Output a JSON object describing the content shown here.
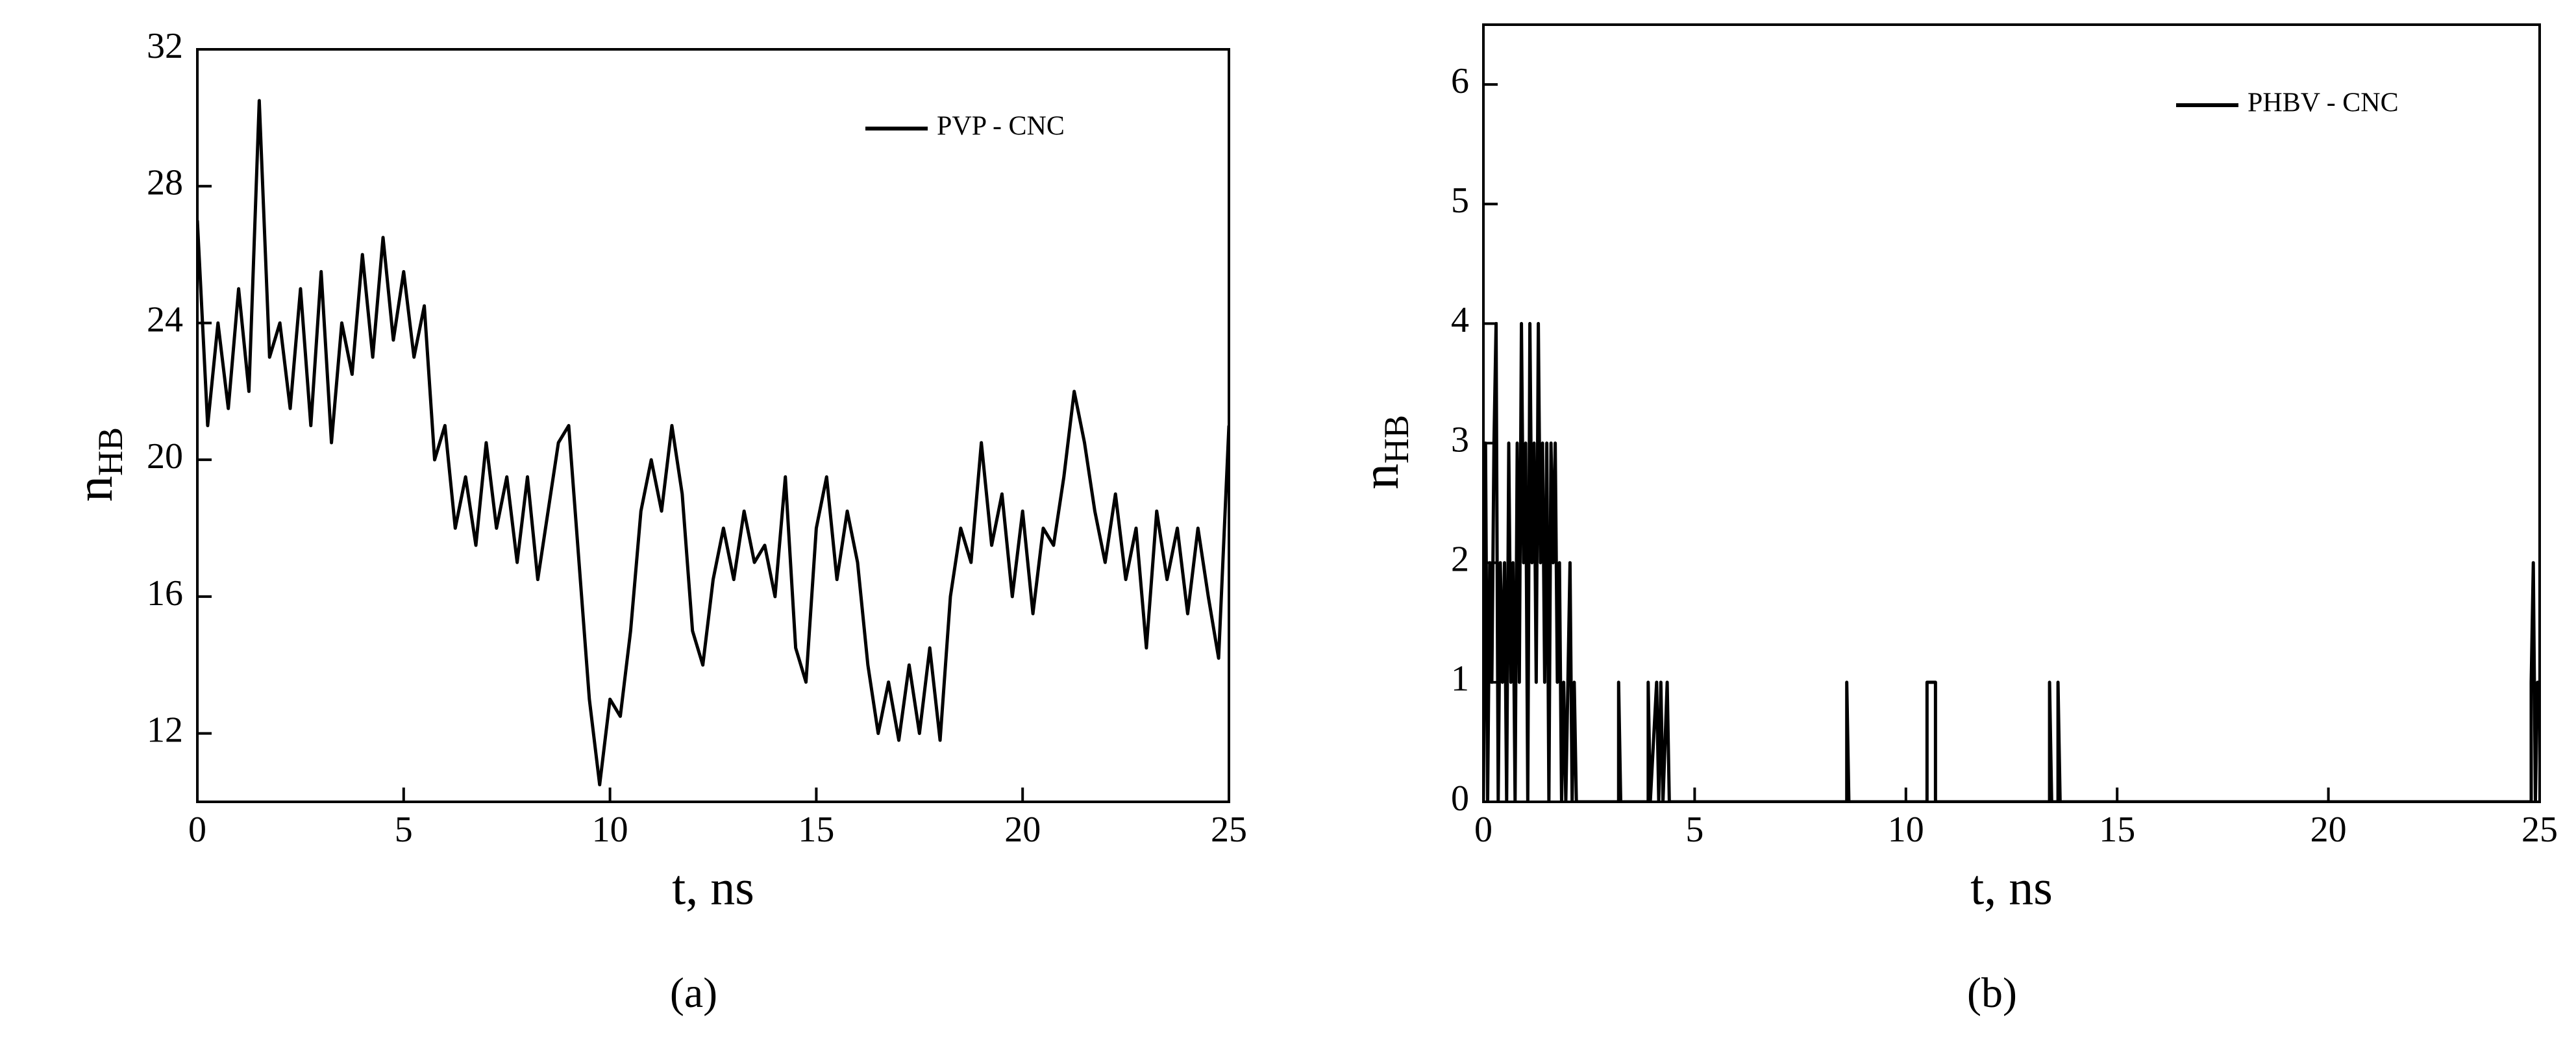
{
  "chart_data": [
    {
      "type": "line",
      "caption": "(a)",
      "xlabel": "t, ns",
      "ylabel": "n",
      "ylabel_sub": "HB",
      "xlim": [
        0,
        25
      ],
      "ylim": [
        10,
        32
      ],
      "xticks": [
        0,
        5,
        10,
        15,
        20,
        25
      ],
      "yticks": [
        12,
        16,
        20,
        24,
        28,
        32
      ],
      "legend": "upper right",
      "x": [
        0,
        0.25,
        0.5,
        0.75,
        1,
        1.25,
        1.5,
        1.75,
        2,
        2.25,
        2.5,
        2.75,
        3,
        3.25,
        3.5,
        3.75,
        4,
        4.25,
        4.5,
        4.75,
        5,
        5.25,
        5.5,
        5.75,
        6,
        6.25,
        6.5,
        6.75,
        7,
        7.25,
        7.5,
        7.75,
        8,
        8.25,
        8.5,
        8.75,
        9,
        9.25,
        9.5,
        9.75,
        10,
        10.25,
        10.5,
        10.75,
        11,
        11.25,
        11.5,
        11.75,
        12,
        12.25,
        12.5,
        12.75,
        13,
        13.25,
        13.5,
        13.75,
        14,
        14.25,
        14.5,
        14.75,
        15,
        15.25,
        15.5,
        15.75,
        16,
        16.25,
        16.5,
        16.75,
        17,
        17.25,
        17.5,
        17.75,
        18,
        18.25,
        18.5,
        18.75,
        19,
        19.25,
        19.5,
        19.75,
        20,
        20.25,
        20.5,
        20.75,
        21,
        21.25,
        21.5,
        21.75,
        22,
        22.25,
        22.5,
        22.75,
        23,
        23.25,
        23.5,
        23.75,
        24,
        24.25,
        24.5,
        24.75,
        25
      ],
      "series": [
        {
          "name": "PVP - CNC",
          "color": "#000000",
          "values": [
            27,
            21,
            24,
            21.5,
            25,
            22,
            30.5,
            23,
            24,
            21.5,
            25,
            21,
            25.5,
            20.5,
            24,
            22.5,
            26,
            23,
            26.5,
            23.5,
            25.5,
            23,
            24.5,
            20,
            21,
            18,
            19.5,
            17.5,
            20.5,
            18,
            19.5,
            17,
            19.5,
            16.5,
            18.5,
            20.5,
            21,
            17,
            13,
            10.5,
            13,
            12.5,
            15,
            18.5,
            20,
            18.5,
            21,
            19,
            15,
            14,
            16.5,
            18,
            16.5,
            18.5,
            17,
            17.5,
            16,
            19.5,
            14.5,
            13.5,
            18,
            19.5,
            16.5,
            18.5,
            17,
            14,
            12,
            13.5,
            11.8,
            14,
            12,
            14.5,
            11.8,
            16,
            18,
            17,
            20.5,
            17.5,
            19,
            16,
            18.5,
            15.5,
            18,
            17.5,
            19.5,
            22,
            20.5,
            18.5,
            17,
            19,
            16.5,
            18,
            14.5,
            18.5,
            16.5,
            18,
            15.5,
            18,
            16,
            14.2,
            21
          ]
        }
      ]
    },
    {
      "type": "line",
      "caption": "(b)",
      "xlabel": "t, ns",
      "ylabel": "n",
      "ylabel_sub": "HB",
      "xlim": [
        0,
        25
      ],
      "ylim": [
        0,
        6.5
      ],
      "xticks": [
        0,
        5,
        10,
        15,
        20,
        25
      ],
      "yticks": [
        0,
        1,
        2,
        3,
        4,
        5,
        6
      ],
      "legend": "upper right",
      "x": [
        0,
        0.05,
        0.1,
        0.15,
        0.2,
        0.25,
        0.3,
        0.35,
        0.4,
        0.45,
        0.5,
        0.55,
        0.6,
        0.65,
        0.7,
        0.75,
        0.8,
        0.85,
        0.9,
        0.95,
        1,
        1.05,
        1.1,
        1.15,
        1.2,
        1.25,
        1.3,
        1.35,
        1.4,
        1.45,
        1.5,
        1.55,
        1.6,
        1.65,
        1.7,
        1.75,
        1.8,
        1.85,
        1.9,
        1.95,
        2,
        2.05,
        2.1,
        2.15,
        2.2,
        3.2,
        3.2,
        3.25,
        3.9,
        3.9,
        3.95,
        4.1,
        4.15,
        4.2,
        4.25,
        4.35,
        4.4,
        8.6,
        8.6,
        8.65,
        10.5,
        10.5,
        10.7,
        10.7,
        13.4,
        13.4,
        13.45,
        13.6,
        13.6,
        13.65,
        24.8,
        24.8,
        24.85,
        24.9,
        24.95,
        25
      ],
      "series": [
        {
          "name": "PHBV -  CNC",
          "color": "#000000",
          "values": [
            0,
            3,
            0,
            2,
            1,
            3,
            4,
            0,
            2,
            1,
            2,
            0,
            3,
            1,
            2,
            0,
            3,
            1,
            4,
            2,
            3,
            0,
            4,
            2,
            3,
            1,
            4,
            2,
            3,
            1,
            3,
            0,
            3,
            2,
            3,
            1,
            2,
            0,
            1,
            0,
            1,
            2,
            0,
            1,
            0,
            0,
            1,
            0,
            0,
            1,
            0,
            1,
            0,
            1,
            0,
            1,
            0,
            0,
            1,
            0,
            0,
            1,
            1,
            0,
            0,
            1,
            0,
            0,
            1,
            0,
            0,
            1,
            2,
            0,
            1,
            1
          ]
        }
      ]
    }
  ]
}
